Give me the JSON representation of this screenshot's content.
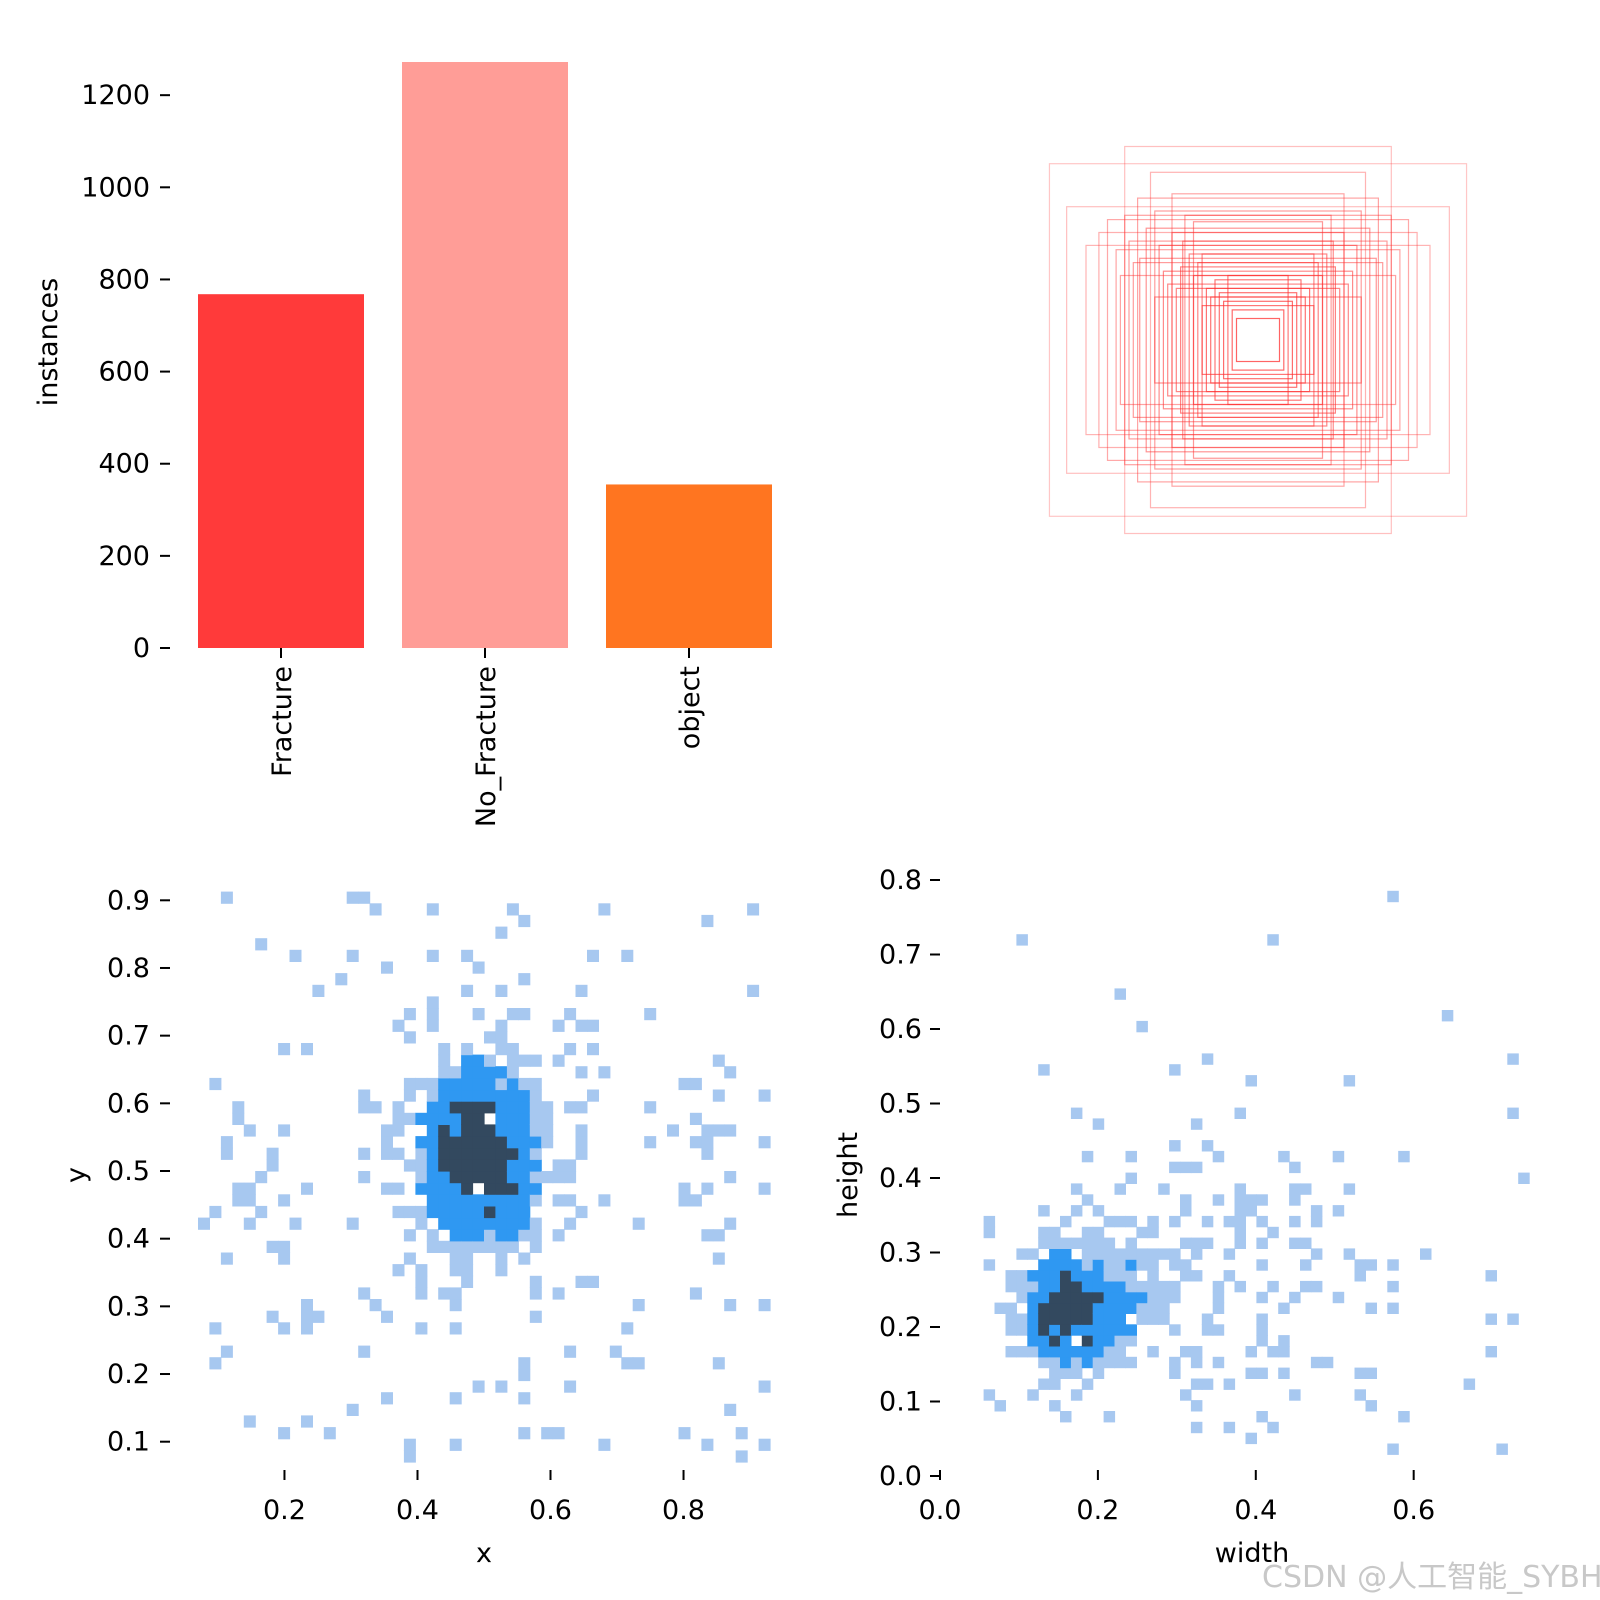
{
  "watermark": "CSDN @人工智能_SYBH",
  "colors": {
    "fracture": "#ff3a3a",
    "no_fracture": "#ff9d97",
    "object": "#ff7520",
    "box_stroke": "#ff3030",
    "hist_light": "#a7c8f0",
    "hist_mid": "#2f98f2",
    "hist_dark": "#33495f"
  },
  "chart_data": [
    {
      "type": "bar",
      "categories": [
        "Fracture",
        "No_Fracture",
        "object"
      ],
      "values": [
        768,
        1272,
        355
      ],
      "ylabel": "instances",
      "xlabel": "",
      "ylim": [
        0,
        1272
      ],
      "yticks": [
        "0",
        "200",
        "400",
        "600",
        "800",
        "1000",
        "1200"
      ],
      "grid": false
    },
    {
      "type": "other",
      "description_note": "",
      "boxes_center": [
        0.5,
        0.5
      ],
      "boxes_wh": [
        [
          0.97,
          0.82
        ],
        [
          0.62,
          0.9
        ],
        [
          0.5,
          0.78
        ],
        [
          0.89,
          0.62
        ],
        [
          0.48,
          0.6
        ],
        [
          0.4,
          0.68
        ],
        [
          0.6,
          0.46
        ],
        [
          0.3,
          0.55
        ],
        [
          0.74,
          0.5
        ],
        [
          0.55,
          0.38
        ],
        [
          0.35,
          0.46
        ],
        [
          0.44,
          0.32
        ],
        [
          0.26,
          0.4
        ],
        [
          0.66,
          0.42
        ],
        [
          0.3,
          0.3
        ],
        [
          0.24,
          0.24
        ],
        [
          0.2,
          0.28
        ],
        [
          0.38,
          0.24
        ],
        [
          0.16,
          0.18
        ],
        [
          0.12,
          0.14
        ],
        [
          0.1,
          0.1
        ],
        [
          0.52,
          0.52
        ],
        [
          0.58,
          0.36
        ],
        [
          0.34,
          0.58
        ],
        [
          0.46,
          0.44
        ],
        [
          0.28,
          0.36
        ],
        [
          0.42,
          0.26
        ],
        [
          0.22,
          0.2
        ],
        [
          0.7,
          0.56
        ],
        [
          0.64,
          0.3
        ],
        [
          0.32,
          0.4
        ],
        [
          0.18,
          0.22
        ],
        [
          0.8,
          0.44
        ],
        [
          0.56,
          0.66
        ],
        [
          0.36,
          0.34
        ],
        [
          0.26,
          0.16
        ],
        [
          0.14,
          0.3
        ],
        [
          0.48,
          0.2
        ],
        [
          0.4,
          0.5
        ],
        [
          0.62,
          0.58
        ]
      ]
    },
    {
      "type": "heatmap",
      "xlabel": "x",
      "ylabel": "y",
      "xticks": [
        "0.2",
        "0.4",
        "0.6",
        "0.8"
      ],
      "yticks": [
        "0.1",
        "0.2",
        "0.3",
        "0.4",
        "0.5",
        "0.6",
        "0.7",
        "0.8",
        "0.9"
      ],
      "xlim": [
        0.07,
        0.93
      ],
      "ylim": [
        0.07,
        0.93
      ]
    },
    {
      "type": "heatmap",
      "xlabel": "width",
      "ylabel": "height",
      "xticks": [
        "0.0",
        "0.2",
        "0.4",
        "0.6"
      ],
      "yticks": [
        "0.0",
        "0.1",
        "0.2",
        "0.3",
        "0.4",
        "0.5",
        "0.6",
        "0.7",
        "0.8"
      ],
      "xlim": [
        0.0,
        0.76
      ],
      "ylim": [
        0.0,
        0.8
      ]
    }
  ]
}
